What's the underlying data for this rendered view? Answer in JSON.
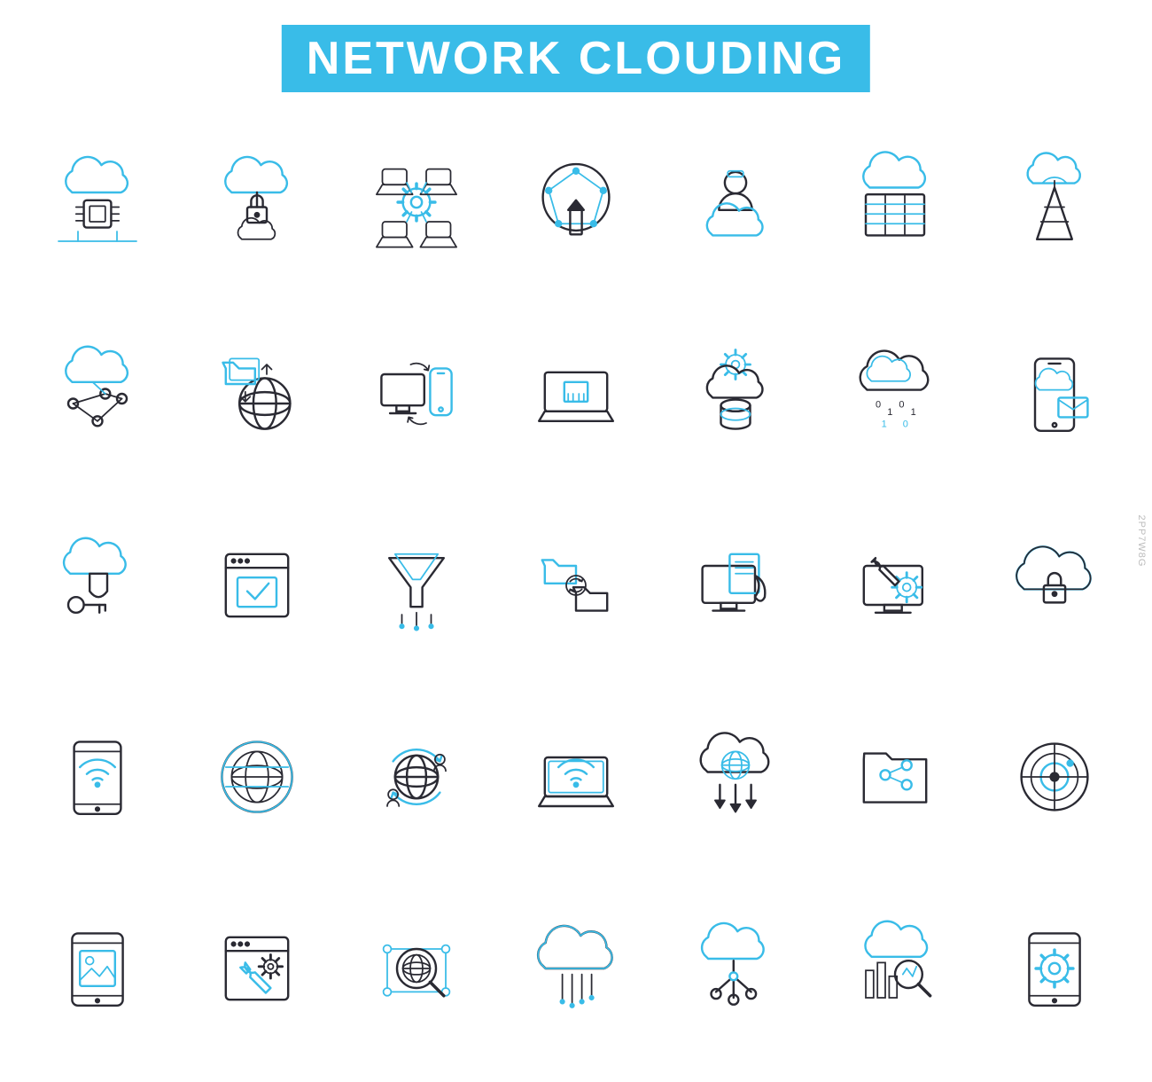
{
  "header": {
    "title": "NETWORK CLOUDING",
    "bg_color": "#39bce8",
    "text_color": "#ffffff",
    "font_size": 52
  },
  "palette": {
    "dark": "#2a2a33",
    "accent": "#39bce8",
    "stroke_main": 2.2,
    "stroke_thin": 1.6,
    "background": "#ffffff"
  },
  "grid": {
    "cols": 7,
    "rows": 5,
    "icons": [
      {
        "name": "cloud-chip-icon"
      },
      {
        "name": "cloud-lock-icon"
      },
      {
        "name": "network-gear-laptops-icon"
      },
      {
        "name": "globe-mesh-upload-icon"
      },
      {
        "name": "cloud-admin-person-icon"
      },
      {
        "name": "cloud-datacenter-icon"
      },
      {
        "name": "cloud-antenna-tower-icon"
      },
      {
        "name": "cloud-nodes-network-icon"
      },
      {
        "name": "globe-folder-transfer-icon"
      },
      {
        "name": "computer-sync-phone-icon"
      },
      {
        "name": "laptop-ethernet-port-icon"
      },
      {
        "name": "gear-cloud-database-icon"
      },
      {
        "name": "cloud-binary-rain-icon"
      },
      {
        "name": "phone-cloud-mail-icon"
      },
      {
        "name": "cloud-shield-key-icon"
      },
      {
        "name": "browser-check-window-icon"
      },
      {
        "name": "funnel-download-icon"
      },
      {
        "name": "folders-sync-icon"
      },
      {
        "name": "monitor-document-fire-icon"
      },
      {
        "name": "monitor-gear-wrench-icon"
      },
      {
        "name": "cloud-padlock-secure-icon"
      },
      {
        "name": "tablet-wifi-icon"
      },
      {
        "name": "globe-circle-grid-icon"
      },
      {
        "name": "globe-people-refresh-icon"
      },
      {
        "name": "laptop-wifi-icon"
      },
      {
        "name": "cloud-globe-download-icon"
      },
      {
        "name": "folder-share-icon"
      },
      {
        "name": "radar-target-icon"
      },
      {
        "name": "tablet-image-gallery-icon"
      },
      {
        "name": "browser-wrench-settings-icon"
      },
      {
        "name": "globe-magnifier-network-icon"
      },
      {
        "name": "cloud-data-lines-icon"
      },
      {
        "name": "cloud-branch-nodes-icon"
      },
      {
        "name": "cloud-chart-magnifier-icon"
      },
      {
        "name": "tablet-settings-gear-icon"
      }
    ]
  },
  "watermark": {
    "text": "2PP7W8G"
  }
}
